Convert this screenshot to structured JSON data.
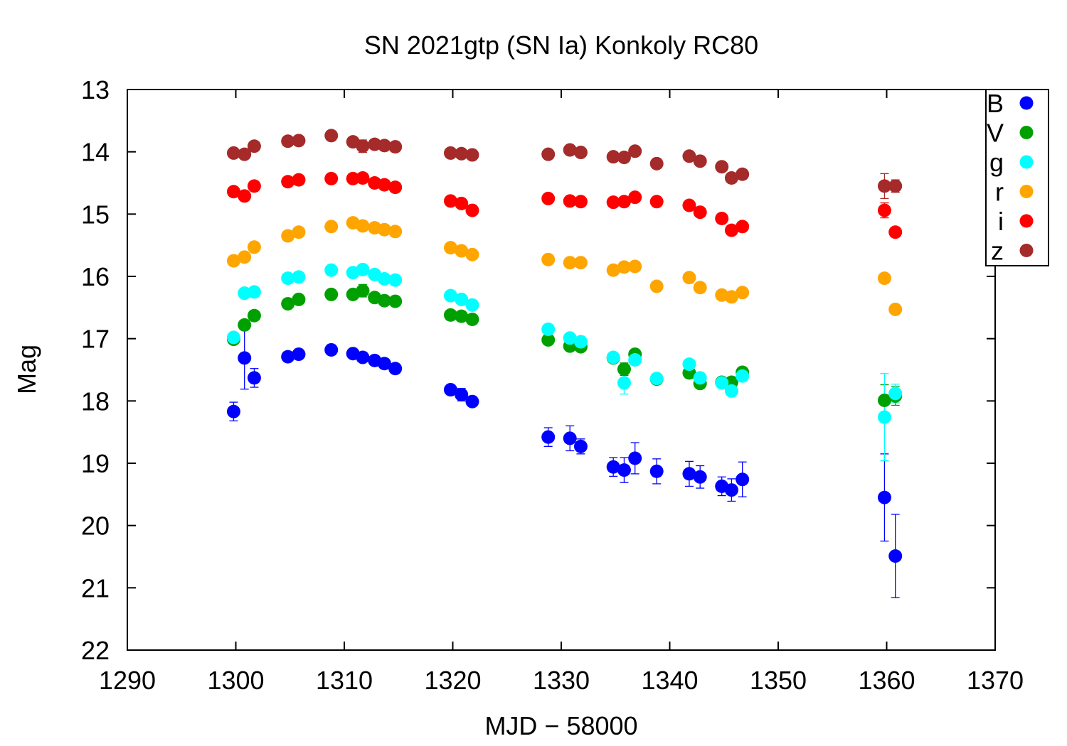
{
  "chart_data": {
    "type": "scatter",
    "title": "SN 2021gtp (SN Ia) Konkoly RC80",
    "xlabel": "MJD − 58000",
    "ylabel": "Mag",
    "xlim": [
      1290,
      1370
    ],
    "ylim": [
      22,
      13
    ],
    "y_inverted": true,
    "x_ticks": [
      1290,
      1300,
      1310,
      1320,
      1330,
      1340,
      1350,
      1360,
      1370
    ],
    "y_ticks": [
      13,
      14,
      15,
      16,
      17,
      18,
      19,
      20,
      21,
      22
    ],
    "legend_position": "top-right",
    "grid": false,
    "series": [
      {
        "name": "B",
        "color": "#0000ff",
        "x": [
          1299.8,
          1300.8,
          1301.7,
          1304.8,
          1305.8,
          1308.8,
          1310.8,
          1311.7,
          1312.8,
          1313.7,
          1314.7,
          1319.8,
          1320.8,
          1321.8,
          1328.8,
          1330.8,
          1331.8,
          1334.8,
          1335.8,
          1336.8,
          1338.8,
          1341.8,
          1342.8,
          1344.8,
          1345.7,
          1346.7,
          1359.8,
          1360.8
        ],
        "y": [
          18.17,
          17.31,
          17.63,
          17.29,
          17.25,
          17.18,
          17.24,
          17.3,
          17.35,
          17.4,
          17.48,
          17.82,
          17.9,
          18.01,
          18.58,
          18.6,
          18.73,
          19.06,
          19.11,
          18.92,
          19.13,
          19.17,
          19.22,
          19.37,
          19.43,
          19.26,
          19.55,
          20.49
        ],
        "err": [
          0.15,
          0.5,
          0.15,
          0.08,
          0.08,
          0.08,
          0.06,
          0.07,
          0.07,
          0.08,
          0.07,
          0.08,
          0.1,
          0.08,
          0.15,
          0.2,
          0.12,
          0.15,
          0.2,
          0.25,
          0.2,
          0.2,
          0.18,
          0.15,
          0.18,
          0.28,
          0.7,
          0.67
        ]
      },
      {
        "name": "V",
        "color": "#00a000",
        "x": [
          1299.8,
          1300.8,
          1301.7,
          1304.8,
          1305.8,
          1308.8,
          1310.8,
          1311.7,
          1312.8,
          1313.7,
          1314.7,
          1319.8,
          1320.8,
          1321.8,
          1328.8,
          1330.8,
          1331.8,
          1334.8,
          1335.8,
          1336.8,
          1338.8,
          1341.8,
          1342.8,
          1344.8,
          1345.7,
          1346.7,
          1359.8,
          1360.8
        ],
        "y": [
          17.01,
          16.78,
          16.63,
          16.44,
          16.37,
          16.29,
          16.29,
          16.23,
          16.34,
          16.39,
          16.4,
          16.62,
          16.64,
          16.69,
          17.02,
          17.12,
          17.13,
          17.31,
          17.49,
          17.25,
          17.65,
          17.55,
          17.72,
          17.7,
          17.7,
          17.54,
          17.99,
          17.92
        ],
        "err": [
          0.05,
          0.05,
          0.05,
          0.04,
          0.04,
          0.04,
          0.04,
          0.1,
          0.04,
          0.04,
          0.04,
          0.04,
          0.04,
          0.04,
          0.05,
          0.05,
          0.05,
          0.06,
          0.1,
          0.06,
          0.08,
          0.08,
          0.08,
          0.08,
          0.08,
          0.08,
          0.25,
          0.15
        ]
      },
      {
        "name": "g",
        "color": "#00ffff",
        "x": [
          1299.8,
          1300.8,
          1301.7,
          1304.8,
          1305.8,
          1308.8,
          1310.8,
          1311.7,
          1312.8,
          1313.7,
          1314.7,
          1319.8,
          1320.8,
          1321.8,
          1328.8,
          1330.8,
          1331.8,
          1334.8,
          1335.8,
          1336.8,
          1338.8,
          1341.8,
          1342.8,
          1344.8,
          1345.7,
          1346.7,
          1359.8,
          1360.8
        ],
        "y": [
          16.98,
          16.27,
          16.25,
          16.03,
          16.01,
          15.9,
          15.94,
          15.89,
          15.97,
          16.04,
          16.06,
          16.31,
          16.37,
          16.46,
          16.85,
          16.99,
          17.05,
          17.3,
          17.71,
          17.34,
          17.64,
          17.41,
          17.63,
          17.71,
          17.84,
          17.6,
          18.26,
          17.88
        ],
        "err": [
          0.05,
          0.05,
          0.05,
          0.04,
          0.04,
          0.04,
          0.04,
          0.04,
          0.04,
          0.04,
          0.04,
          0.04,
          0.04,
          0.04,
          0.05,
          0.05,
          0.05,
          0.06,
          0.18,
          0.06,
          0.08,
          0.08,
          0.08,
          0.08,
          0.08,
          0.08,
          0.7,
          0.15
        ]
      },
      {
        "name": "r",
        "color": "#ffa500",
        "x": [
          1299.8,
          1300.8,
          1301.7,
          1304.8,
          1305.8,
          1308.8,
          1310.8,
          1311.7,
          1312.8,
          1313.7,
          1314.7,
          1319.8,
          1320.8,
          1321.8,
          1328.8,
          1330.8,
          1331.8,
          1334.8,
          1335.8,
          1336.8,
          1338.8,
          1341.8,
          1342.8,
          1344.8,
          1345.7,
          1346.7,
          1359.8,
          1360.8
        ],
        "y": [
          15.75,
          15.69,
          15.53,
          15.35,
          15.29,
          15.2,
          15.14,
          15.19,
          15.22,
          15.25,
          15.28,
          15.54,
          15.59,
          15.65,
          15.73,
          15.78,
          15.78,
          15.9,
          15.85,
          15.84,
          16.16,
          16.02,
          16.18,
          16.3,
          16.33,
          16.26,
          16.03,
          16.53
        ],
        "err": [
          0.04,
          0.04,
          0.04,
          0.04,
          0.04,
          0.04,
          0.04,
          0.04,
          0.04,
          0.04,
          0.04,
          0.04,
          0.04,
          0.04,
          0.04,
          0.04,
          0.04,
          0.04,
          0.04,
          0.04,
          0.05,
          0.05,
          0.05,
          0.05,
          0.05,
          0.05,
          0.06,
          0.06
        ]
      },
      {
        "name": "i",
        "color": "#ff0000",
        "x": [
          1299.8,
          1300.8,
          1301.7,
          1304.8,
          1305.8,
          1308.8,
          1310.8,
          1311.7,
          1312.8,
          1313.7,
          1314.7,
          1319.8,
          1320.8,
          1321.8,
          1328.8,
          1330.8,
          1331.8,
          1334.8,
          1335.8,
          1336.8,
          1338.8,
          1341.8,
          1342.8,
          1344.8,
          1345.7,
          1346.7,
          1359.8,
          1360.8
        ],
        "y": [
          14.64,
          14.71,
          14.55,
          14.48,
          14.45,
          14.43,
          14.43,
          14.42,
          14.5,
          14.53,
          14.57,
          14.79,
          14.83,
          14.94,
          14.75,
          14.79,
          14.8,
          14.81,
          14.8,
          14.73,
          14.8,
          14.86,
          14.97,
          15.07,
          15.26,
          15.2,
          14.94,
          15.29
        ],
        "err": [
          0.04,
          0.04,
          0.04,
          0.04,
          0.04,
          0.04,
          0.04,
          0.04,
          0.04,
          0.04,
          0.04,
          0.04,
          0.04,
          0.04,
          0.04,
          0.04,
          0.04,
          0.04,
          0.04,
          0.04,
          0.04,
          0.04,
          0.05,
          0.05,
          0.05,
          0.05,
          0.12,
          0.05
        ]
      },
      {
        "name": "z",
        "color": "#a52a2a",
        "x": [
          1299.8,
          1300.8,
          1301.7,
          1304.8,
          1305.8,
          1308.8,
          1310.8,
          1311.7,
          1312.8,
          1313.7,
          1314.7,
          1319.8,
          1320.8,
          1321.8,
          1328.8,
          1330.8,
          1331.8,
          1334.8,
          1335.8,
          1336.8,
          1338.8,
          1341.8,
          1342.8,
          1344.8,
          1345.7,
          1346.7,
          1359.8,
          1360.8
        ],
        "y": [
          14.02,
          14.04,
          13.91,
          13.83,
          13.82,
          13.74,
          13.84,
          13.91,
          13.88,
          13.9,
          13.92,
          14.02,
          14.03,
          14.05,
          14.04,
          13.97,
          14.01,
          14.08,
          14.09,
          13.99,
          14.19,
          14.07,
          14.15,
          14.24,
          14.42,
          14.36,
          14.55,
          14.55
        ],
        "err": [
          0.04,
          0.04,
          0.04,
          0.04,
          0.04,
          0.04,
          0.04,
          0.1,
          0.04,
          0.04,
          0.04,
          0.04,
          0.04,
          0.04,
          0.04,
          0.04,
          0.04,
          0.04,
          0.06,
          0.04,
          0.08,
          0.04,
          0.05,
          0.05,
          0.05,
          0.05,
          0.2,
          0.1
        ]
      }
    ]
  }
}
